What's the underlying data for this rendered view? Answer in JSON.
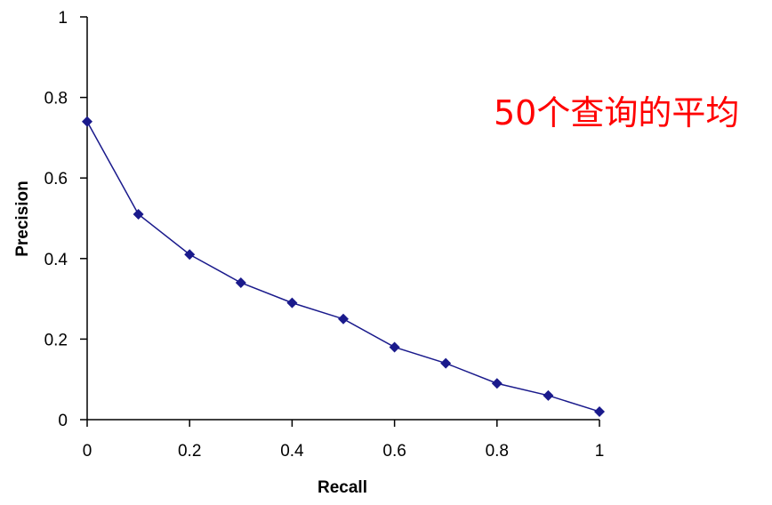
{
  "chart_data": {
    "type": "line",
    "title": "",
    "xlabel": "Recall",
    "ylabel": "Precision",
    "xlim": [
      0,
      1
    ],
    "ylim": [
      0,
      1
    ],
    "x_ticks": [
      "0",
      "0.2",
      "0.4",
      "0.6",
      "0.8",
      "1"
    ],
    "y_ticks": [
      "0",
      "0.2",
      "0.4",
      "0.6",
      "0.8",
      "1"
    ],
    "grid": false,
    "legend": "none",
    "series": [
      {
        "x": [
          0,
          0.1,
          0.2,
          0.3,
          0.4,
          0.5,
          0.6,
          0.7,
          0.8,
          0.9,
          1.0
        ],
        "y": [
          0.74,
          0.51,
          0.41,
          0.34,
          0.29,
          0.25,
          0.18,
          0.14,
          0.09,
          0.06,
          0.02
        ],
        "color": "#1a1a8c",
        "marker": "diamond"
      }
    ],
    "annotation": {
      "text": "50个查询的平均",
      "color": "#ff0000"
    }
  }
}
